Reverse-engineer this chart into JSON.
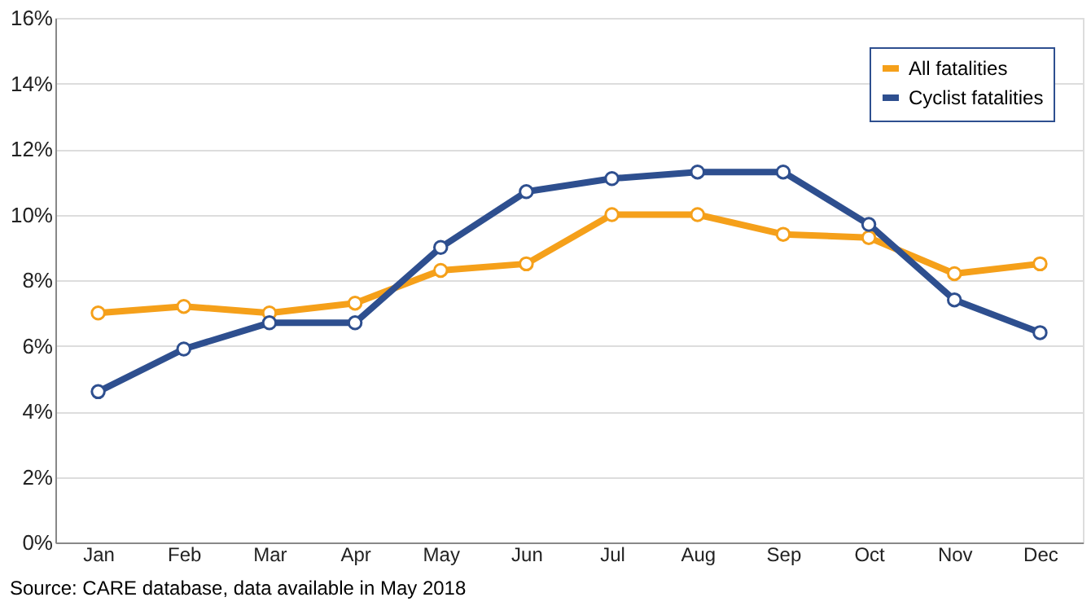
{
  "chart_data": {
    "type": "line",
    "categories": [
      "Jan",
      "Feb",
      "Mar",
      "Apr",
      "May",
      "Jun",
      "Jul",
      "Aug",
      "Sep",
      "Oct",
      "Nov",
      "Dec"
    ],
    "series": [
      {
        "name": "All fatalities",
        "color": "#f5a01a",
        "values": [
          7.0,
          7.2,
          7.0,
          7.3,
          8.3,
          8.5,
          10.0,
          10.0,
          9.4,
          9.3,
          8.2,
          8.5
        ]
      },
      {
        "name": "Cyclist fatalities",
        "color": "#2e4f8f",
        "values": [
          4.6,
          5.9,
          6.7,
          6.7,
          9.0,
          10.7,
          11.1,
          11.3,
          11.3,
          9.7,
          7.4,
          6.4
        ]
      }
    ],
    "ylim": [
      0,
      16
    ],
    "yticks": [
      {
        "value": 0,
        "label": "0%"
      },
      {
        "value": 2,
        "label": "2%"
      },
      {
        "value": 4,
        "label": "4%"
      },
      {
        "value": 6,
        "label": "6%"
      },
      {
        "value": 8,
        "label": "8%"
      },
      {
        "value": 10,
        "label": "10%"
      },
      {
        "value": 12,
        "label": "12%"
      },
      {
        "value": 14,
        "label": "14%"
      },
      {
        "value": 16,
        "label": "16%"
      }
    ],
    "grid": "y",
    "legend": "top right",
    "marker": "circle",
    "line_style": "solid",
    "annotations": [
      "Source: CARE database, data available in May 2018"
    ]
  }
}
